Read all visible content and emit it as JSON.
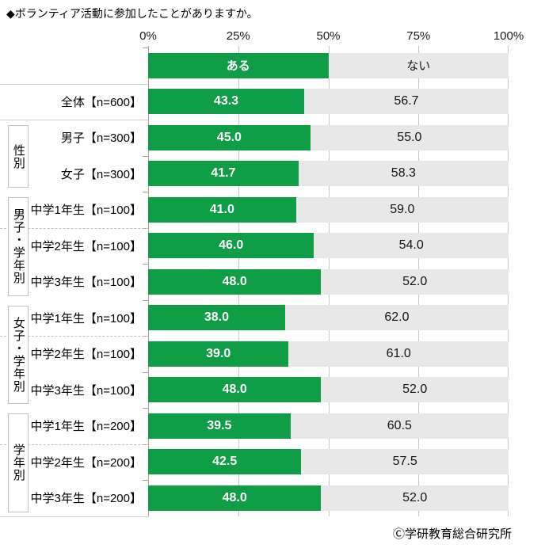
{
  "title": "◆ボランティア活動に参加したことがありますか。",
  "footer": "Ⓒ学研教育総合研究所",
  "colors": {
    "have": "#0f9d46",
    "not": "#e8e8e8",
    "grid": "#c8c8c8",
    "axis": "#9f9f9f"
  },
  "chart_data": {
    "type": "bar",
    "orientation": "horizontal-stacked",
    "title": "◆ボランティア活動に参加したことがありますか。",
    "xlim": [
      0,
      100
    ],
    "x_ticks": [
      {
        "label": "0%",
        "pct": 0
      },
      {
        "label": "25%",
        "pct": 25
      },
      {
        "label": "50%",
        "pct": 50
      },
      {
        "label": "75%",
        "pct": 75
      },
      {
        "label": "100%",
        "pct": 100
      }
    ],
    "legend": [
      {
        "name": "ある",
        "color": "#0f9d46"
      },
      {
        "name": "ない",
        "color": "#e8e8e8"
      }
    ],
    "legend_position": "top-bar",
    "grid": true,
    "categories": [
      "全体【n=600】",
      "男子【n=300】",
      "女子【n=300】",
      "中学1年生【n=100】",
      "中学2年生【n=100】",
      "中学3年生【n=100】",
      "中学1年生【n=100】",
      "中学2年生【n=100】",
      "中学3年生【n=100】",
      "中学1年生【n=200】",
      "中学2年生【n=200】",
      "中学3年生【n=200】"
    ],
    "series": [
      {
        "name": "ある",
        "values": [
          43.3,
          45.0,
          41.7,
          41.0,
          46.0,
          48.0,
          38.0,
          39.0,
          48.0,
          39.5,
          42.5,
          48.0
        ]
      },
      {
        "name": "ない",
        "values": [
          56.7,
          55.0,
          58.3,
          59.0,
          54.0,
          52.0,
          62.0,
          61.0,
          52.0,
          60.5,
          57.5,
          52.0
        ]
      }
    ],
    "groups": [
      {
        "label": "性別",
        "start": 1,
        "end": 2
      },
      {
        "label": "男子・学年別",
        "start": 3,
        "end": 5
      },
      {
        "label": "女子・学年別",
        "start": 6,
        "end": 8
      },
      {
        "label": "学年別",
        "start": 9,
        "end": 11
      }
    ]
  }
}
